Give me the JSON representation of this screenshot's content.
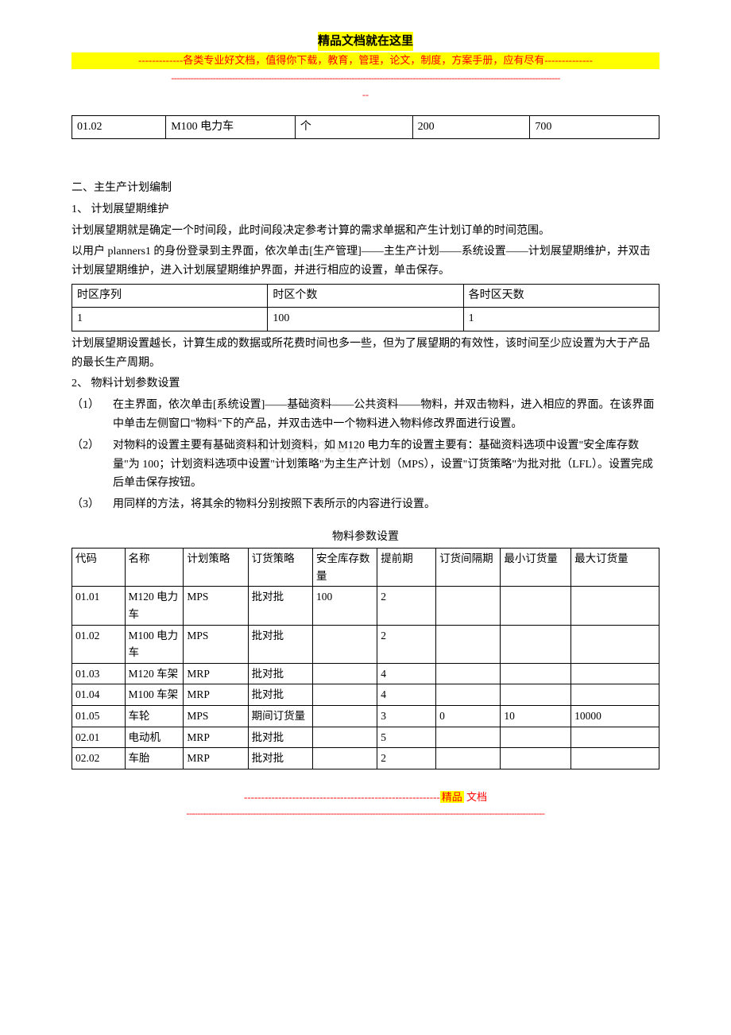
{
  "header": {
    "title": "精品文档就在这里",
    "sub_prefix": "-------------",
    "sub_text": "各类专业好文档，值得你下载，教育，管理，论文，制度，方案手册，应有尽有",
    "sub_suffix": "--------------",
    "divider1": "--------------------------------------------------------------------------------------------------------------------------------------------",
    "divider2": "--"
  },
  "table1": {
    "r": [
      "01.02",
      "M100 电力车",
      "个",
      "200",
      "700"
    ]
  },
  "s2": {
    "title": "二、主生产计划编制",
    "p1_title": "1、 计划展望期维护",
    "p1_l1": "计划展望期就是确定一个时间段，此时间段决定参考计算的需求单据和产生计划订单的时间范围。",
    "p1_l2": "以用户 planners1 的身份登录到主界面，依次单击[生产管理]——主生产计划——系统设置——计划展望期维护，并双击计划展望期维护，进入计划展望期维护界面，并进行相应的设置，单击保存。"
  },
  "table2": {
    "h": [
      "时区序列",
      "时区个数",
      "各时区天数"
    ],
    "r": [
      "1",
      "100",
      "1"
    ]
  },
  "s2b": {
    "after": "计划展望期设置越长，计算生成的数据或所花费时间也多一些，但为了展望期的有效性，该时间至少应设置为大于产品的最长生产周期。",
    "p2_title": "2、 物料计划参数设置",
    "i1n": "（1）",
    "i1": "在主界面，依次单击[系统设置]——基础资料——公共资料——物料，并双击物料，进入相应的界面。在该界面中单击左侧窗口\"物料\"下的产品，并双击选中一个物料进入物料修改界面进行设置。",
    "i2n": "（2）",
    "i2": "对物料的设置主要有基础资料和计划资料，如 M120 电力车的设置主要有：基础资料选项中设置\"安全库存数量\"为 100；计划资料选项中设置\"计划策略\"为主生产计划（MPS），设置\"订货策略\"为批对批（LFL）。设置完成后单击保存按钮。",
    "i3n": "（3）",
    "i3": "用同样的方法，将其余的物料分别按照下表所示的内容进行设置。"
  },
  "table3": {
    "title": "物料参数设置",
    "h": [
      "代码",
      "名称",
      "计划策略",
      "订货策略",
      "安全库存数量",
      "提前期",
      "订货间隔期",
      "最小订货量",
      "最大订货量"
    ],
    "rows": [
      [
        "01.01",
        "M120 电力车",
        "MPS",
        "批对批",
        "100",
        "2",
        "",
        "",
        ""
      ],
      [
        "01.02",
        "M100 电力车",
        "MPS",
        "批对批",
        "",
        "2",
        "",
        "",
        ""
      ],
      [
        "01.03",
        "M120 车架",
        "MRP",
        "批对批",
        "",
        "4",
        "",
        "",
        ""
      ],
      [
        "01.04",
        "M100 车架",
        "MRP",
        "批对批",
        "",
        "4",
        "",
        "",
        ""
      ],
      [
        "01.05",
        "车轮",
        "MPS",
        "期间订货量",
        "",
        "3",
        "0",
        "10",
        "10000"
      ],
      [
        "02.01",
        "电动机",
        "MRP",
        "批对批",
        "",
        "5",
        "",
        "",
        ""
      ],
      [
        "02.02",
        "车胎",
        "MRP",
        "批对批",
        "",
        "2",
        "",
        "",
        ""
      ]
    ]
  },
  "watermark": "xin.com.cn",
  "footer": {
    "dashes": "---------------------------------------------------------",
    "jingpin": "精品",
    "wendang": " 文档",
    "line2": "---------------------------------------------------------------------------------------------------------------------------------"
  }
}
